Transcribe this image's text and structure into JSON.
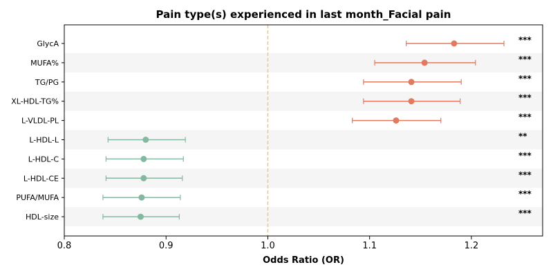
{
  "chart_data": {
    "type": "scatter",
    "title": "Pain type(s) experienced in last month_Facial pain",
    "xlabel": "Odds Ratio (OR)",
    "xlim": [
      0.8,
      1.27
    ],
    "xticks": [
      0.8,
      0.9,
      1.0,
      1.1,
      1.2
    ],
    "xtick_labels": [
      "0.8",
      "0.9",
      "1.0",
      "1.1",
      "1.2"
    ],
    "reference_line": 1.0,
    "colors": {
      "positive": "#e07b62",
      "negative": "#85b8a0",
      "reference": "#f3c77a",
      "band": "#f5f5f5"
    },
    "rows": [
      {
        "label": "GlycA",
        "or": 1.183,
        "lo": 1.136,
        "hi": 1.232,
        "sig": "***"
      },
      {
        "label": "MUFA%",
        "or": 1.154,
        "lo": 1.105,
        "hi": 1.204,
        "sig": "***"
      },
      {
        "label": "TG/PG",
        "or": 1.141,
        "lo": 1.094,
        "hi": 1.19,
        "sig": "***"
      },
      {
        "label": "XL-HDL-TG%",
        "or": 1.141,
        "lo": 1.094,
        "hi": 1.189,
        "sig": "***"
      },
      {
        "label": "L-VLDL-PL",
        "or": 1.126,
        "lo": 1.083,
        "hi": 1.17,
        "sig": "***"
      },
      {
        "label": "L-HDL-L",
        "or": 0.88,
        "lo": 0.843,
        "hi": 0.919,
        "sig": "**"
      },
      {
        "label": "L-HDL-C",
        "or": 0.878,
        "lo": 0.841,
        "hi": 0.917,
        "sig": "***"
      },
      {
        "label": "L-HDL-CE",
        "or": 0.878,
        "lo": 0.841,
        "hi": 0.916,
        "sig": "***"
      },
      {
        "label": "PUFA/MUFA",
        "or": 0.876,
        "lo": 0.838,
        "hi": 0.914,
        "sig": "***"
      },
      {
        "label": "HDL-size",
        "or": 0.875,
        "lo": 0.838,
        "hi": 0.913,
        "sig": "***"
      }
    ]
  }
}
